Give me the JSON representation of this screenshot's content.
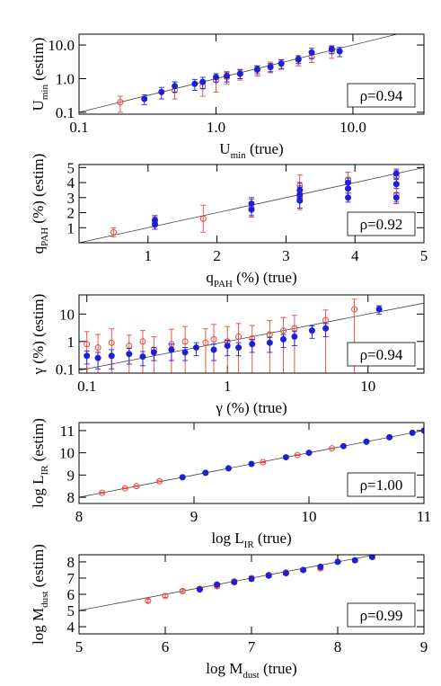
{
  "chart_data": [
    {
      "type": "scatter",
      "xscale": "log",
      "yscale": "log",
      "annotation": "ρ=0.94",
      "x_label": {
        "text": "U",
        "sub": "min",
        "suffix": " (true)"
      },
      "y_label": {
        "text": "U",
        "sub": "min",
        "suffix": " (estim)"
      },
      "xlim": [
        0.1,
        33
      ],
      "ylim": [
        0.088,
        21
      ],
      "xticks": [
        0.1,
        {
          "value": 1,
          "label": "1.0"
        },
        {
          "value": 10,
          "label": "10.0"
        }
      ],
      "yticks": [
        0.1,
        {
          "value": 1,
          "label": "1.0"
        },
        {
          "value": 10,
          "label": "10.0"
        }
      ],
      "series": [
        {
          "color": "#e8473c",
          "marker": "open",
          "x": [
            0.2,
            0.5,
            0.8,
            1.0,
            1.2,
            1.5,
            2.0,
            2.5,
            3.0,
            4.0,
            5.0,
            7.0
          ],
          "values": [
            0.2,
            0.45,
            0.6,
            0.9,
            1.1,
            1.4,
            1.8,
            2.3,
            2.8,
            3.6,
            4.5,
            6.5
          ],
          "errors": [
            0.1,
            0.2,
            0.3,
            0.5,
            0.4,
            0.5,
            0.6,
            0.8,
            0.9,
            1.2,
            1.5,
            2.5
          ]
        },
        {
          "color": "#1f1fd6",
          "marker": "filled",
          "x": [
            0.3,
            0.4,
            0.5,
            0.7,
            0.8,
            1.0,
            1.2,
            1.5,
            2.0,
            2.5,
            3.0,
            4.0,
            5.0,
            7.0,
            8.0
          ],
          "values": [
            0.25,
            0.4,
            0.6,
            0.7,
            0.8,
            1.1,
            1.2,
            1.4,
            1.9,
            2.2,
            2.8,
            3.8,
            6.0,
            7.5,
            6.5
          ],
          "errors": [
            0.08,
            0.15,
            0.2,
            0.25,
            0.3,
            0.3,
            0.4,
            0.4,
            0.5,
            0.6,
            0.8,
            1.0,
            2.0,
            2.0,
            2.0
          ]
        }
      ]
    },
    {
      "type": "scatter",
      "xscale": "linear",
      "yscale": "linear",
      "annotation": "ρ=0.92",
      "x_label": {
        "text": "q",
        "sub": "PAH",
        "suffix": " (%) (true)"
      },
      "y_label": {
        "text": "q",
        "sub": "PAH",
        "suffix": " (%) (estim)"
      },
      "xlim": [
        0,
        5
      ],
      "ylim": [
        0,
        5.2
      ],
      "xticks": [
        1,
        2,
        3,
        4,
        5
      ],
      "yticks": [
        1,
        2,
        3,
        4,
        5
      ],
      "series": [
        {
          "color": "#e8473c",
          "marker": "open",
          "x": [
            0.5,
            1.1,
            1.8,
            2.5,
            3.2,
            3.2,
            3.9,
            3.9,
            4.6,
            4.6
          ],
          "values": [
            0.7,
            1.3,
            1.6,
            2.3,
            3.0,
            3.8,
            3.6,
            4.2,
            3.2,
            4.4
          ],
          "errors": [
            0.3,
            0.4,
            0.9,
            0.6,
            0.8,
            0.7,
            0.5,
            0.5,
            0.6,
            0.4
          ]
        },
        {
          "color": "#1f1fd6",
          "marker": "filled",
          "x": [
            1.1,
            1.1,
            2.5,
            2.5,
            3.2,
            3.2,
            3.2,
            3.9,
            3.9,
            3.9,
            4.6,
            4.6,
            4.6
          ],
          "values": [
            1.2,
            1.5,
            2.2,
            2.6,
            2.8,
            3.2,
            3.5,
            3.0,
            3.6,
            4.0,
            3.0,
            3.9,
            4.6
          ],
          "errors": [
            0.3,
            0.3,
            0.4,
            0.4,
            0.5,
            0.5,
            0.5,
            0.3,
            0.3,
            0.3,
            0.3,
            0.3,
            0.3
          ]
        }
      ]
    },
    {
      "type": "scatter",
      "xscale": "log",
      "yscale": "log",
      "annotation": "ρ=0.94",
      "x_label": {
        "text": "γ (%) (true)"
      },
      "y_label": {
        "text": "γ (%) (estim)"
      },
      "xlim": [
        0.088,
        25
      ],
      "ylim": [
        0.07,
        50
      ],
      "xticks": [
        0.1,
        1,
        10
      ],
      "yticks": [
        0.1,
        1,
        10
      ],
      "series": [
        {
          "color": "#e8473c",
          "marker": "open",
          "x": [
            0.1,
            0.12,
            0.15,
            0.2,
            0.25,
            0.3,
            0.4,
            0.5,
            0.7,
            0.8,
            1.0,
            1.2,
            1.5,
            2.0,
            2.5,
            3.0,
            5.0,
            8.0
          ],
          "values": [
            0.8,
            0.6,
            0.9,
            0.7,
            1.0,
            0.5,
            0.8,
            1.0,
            0.9,
            1.2,
            1.0,
            1.5,
            1.3,
            1.8,
            2.5,
            3.0,
            6.0,
            15
          ],
          "errors": [
            1.5,
            1.2,
            2,
            1,
            1.5,
            1,
            2,
            2.5,
            2,
            3,
            2.5,
            3,
            2.5,
            4,
            5,
            6,
            8,
            20
          ]
        },
        {
          "color": "#1f1fd6",
          "marker": "filled",
          "x": [
            0.1,
            0.12,
            0.15,
            0.2,
            0.25,
            0.3,
            0.4,
            0.5,
            0.6,
            0.8,
            1.0,
            1.2,
            1.5,
            2.0,
            2.5,
            3.0,
            4.0,
            5.0,
            12
          ],
          "values": [
            0.3,
            0.25,
            0.3,
            0.35,
            0.28,
            0.4,
            0.5,
            0.4,
            0.6,
            0.5,
            0.7,
            0.6,
            0.8,
            0.9,
            1.2,
            1.5,
            2.5,
            3.0,
            15
          ],
          "errors": [
            0.15,
            0.15,
            0.2,
            0.2,
            0.15,
            0.2,
            0.3,
            0.2,
            0.3,
            0.3,
            0.4,
            0.3,
            0.4,
            0.5,
            0.6,
            0.8,
            1.2,
            1.5,
            5
          ]
        }
      ]
    },
    {
      "type": "scatter",
      "xscale": "linear",
      "yscale": "linear",
      "annotation": "ρ=1.00",
      "x_label": {
        "text": "log L",
        "sub": "IR",
        "suffix": " (true)"
      },
      "y_label": {
        "text": "log L",
        "sub": "IR",
        "suffix": " (estim)"
      },
      "xlim": [
        8,
        11
      ],
      "ylim": [
        7.72,
        11.36
      ],
      "xticks": [
        8,
        9,
        10,
        11
      ],
      "yticks": [
        8,
        9,
        10,
        11
      ],
      "series": [
        {
          "color": "#e8473c",
          "marker": "open",
          "x": [
            8.2,
            8.4,
            8.5,
            8.7,
            8.9,
            9.1,
            9.3,
            9.6,
            9.9,
            10.2,
            10.5,
            10.7
          ],
          "values": [
            8.2,
            8.4,
            8.5,
            8.72,
            8.9,
            9.1,
            9.3,
            9.58,
            9.9,
            10.2,
            10.5,
            10.7
          ],
          "errors": [
            0.02,
            0.02,
            0.02,
            0.02,
            0.02,
            0.02,
            0.02,
            0.02,
            0.02,
            0.02,
            0.02,
            0.02
          ]
        },
        {
          "color": "#1f1fd6",
          "marker": "filled",
          "x": [
            8.9,
            9.1,
            9.3,
            9.5,
            9.8,
            10.0,
            10.3,
            10.5,
            10.7,
            10.9,
            11.0
          ],
          "values": [
            8.9,
            9.1,
            9.3,
            9.5,
            9.8,
            10.0,
            10.3,
            10.5,
            10.7,
            10.9,
            11.0
          ],
          "errors": [
            0.02,
            0.02,
            0.02,
            0.02,
            0.02,
            0.02,
            0.02,
            0.02,
            0.02,
            0.02,
            0.02
          ]
        }
      ]
    },
    {
      "type": "scatter",
      "xscale": "linear",
      "yscale": "linear",
      "annotation": "ρ=0.99",
      "x_label": {
        "text": "log M",
        "sub": "dust",
        "suffix": " (true)"
      },
      "y_label": {
        "text": "log M",
        "sub": "dust",
        "suffix": " (estim)"
      },
      "xlim": [
        5,
        9
      ],
      "ylim": [
        3.56,
        8.44
      ],
      "xticks": [
        5,
        6,
        7,
        8,
        9
      ],
      "yticks": [
        4,
        5,
        6,
        7,
        8
      ],
      "series": [
        {
          "color": "#e8473c",
          "marker": "open",
          "x": [
            5.8,
            6.0,
            6.2,
            6.4,
            6.6,
            6.8,
            7.0,
            7.2,
            7.4,
            7.6,
            7.8
          ],
          "values": [
            5.6,
            5.9,
            6.2,
            6.35,
            6.5,
            6.8,
            7.0,
            7.2,
            7.35,
            7.5,
            7.6
          ],
          "errors": [
            0.1,
            0.1,
            0.1,
            0.1,
            0.1,
            0.1,
            0.1,
            0.1,
            0.1,
            0.1,
            0.1
          ]
        },
        {
          "color": "#1f1fd6",
          "marker": "filled",
          "x": [
            6.4,
            6.6,
            6.8,
            7.0,
            7.2,
            7.4,
            7.6,
            7.8,
            8.0,
            8.2,
            8.4
          ],
          "values": [
            6.3,
            6.6,
            6.75,
            6.95,
            7.15,
            7.3,
            7.5,
            7.7,
            8.0,
            8.1,
            8.3
          ],
          "errors": [
            0.1,
            0.1,
            0.1,
            0.1,
            0.1,
            0.1,
            0.1,
            0.1,
            0.1,
            0.1,
            0.1
          ]
        }
      ]
    }
  ]
}
